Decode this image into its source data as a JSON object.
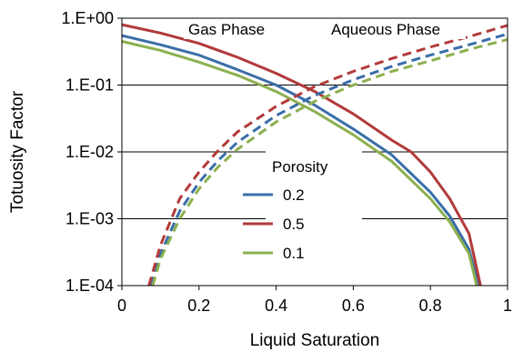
{
  "chart_data": {
    "type": "line",
    "xlabel": "Liquid Saturation",
    "ylabel": "Totuosity Factor",
    "x_scale": "linear",
    "y_scale": "log",
    "xlim": [
      0,
      1
    ],
    "ylim": [
      0.0001,
      1
    ],
    "x_ticks": [
      "0",
      "0.2",
      "0.4",
      "0.6",
      "0.8",
      "1"
    ],
    "y_ticks": [
      "1.E-04",
      "1.E-03",
      "1.E-02",
      "1.E-01",
      "1.E+00"
    ],
    "grid": "horizontal",
    "annotations": [
      "Gas Phase",
      "Aqueous Phase"
    ],
    "legend": {
      "title": "Porosity",
      "placement": "center-right",
      "entries": [
        "0.2",
        "0.5",
        "0.1"
      ]
    },
    "colors": {
      "0.2": "#3A6EA8",
      "0.5": "#B23A3A",
      "0.1": "#8CB050"
    },
    "line_styles": {
      "Gas Phase": "solid",
      "Aqueous Phase": "dashed"
    },
    "series": [
      {
        "name": "0.2",
        "phase": "Gas Phase",
        "x": [
          0.0,
          0.1,
          0.2,
          0.3,
          0.4,
          0.5,
          0.6,
          0.7,
          0.8,
          0.85,
          0.9,
          0.925
        ],
        "y": [
          0.55,
          0.4,
          0.28,
          0.17,
          0.1,
          0.05,
          0.022,
          0.009,
          0.0025,
          0.0011,
          0.00035,
          0.0001
        ]
      },
      {
        "name": "0.5",
        "phase": "Gas Phase",
        "x": [
          0.0,
          0.1,
          0.2,
          0.3,
          0.4,
          0.5,
          0.6,
          0.7,
          0.75,
          0.8,
          0.85,
          0.9,
          0.93
        ],
        "y": [
          0.8,
          0.6,
          0.42,
          0.26,
          0.15,
          0.08,
          0.037,
          0.015,
          0.01,
          0.005,
          0.002,
          0.0006,
          0.0001
        ]
      },
      {
        "name": "0.1",
        "phase": "Gas Phase",
        "x": [
          0.0,
          0.1,
          0.2,
          0.3,
          0.4,
          0.5,
          0.6,
          0.7,
          0.8,
          0.85,
          0.9,
          0.92
        ],
        "y": [
          0.45,
          0.33,
          0.22,
          0.14,
          0.08,
          0.04,
          0.018,
          0.0072,
          0.002,
          0.0009,
          0.0003,
          0.0001
        ]
      },
      {
        "name": "0.2",
        "phase": "Aqueous Phase",
        "x": [
          0.075,
          0.1,
          0.15,
          0.2,
          0.25,
          0.3,
          0.4,
          0.5,
          0.6,
          0.7,
          0.8,
          0.9,
          1.0
        ],
        "y": [
          0.0001,
          0.0003,
          0.0013,
          0.0035,
          0.0075,
          0.014,
          0.035,
          0.07,
          0.12,
          0.19,
          0.28,
          0.4,
          0.58
        ]
      },
      {
        "name": "0.5",
        "phase": "Aqueous Phase",
        "x": [
          0.07,
          0.1,
          0.15,
          0.2,
          0.25,
          0.3,
          0.4,
          0.5,
          0.6,
          0.7,
          0.8,
          0.9,
          1.0
        ],
        "y": [
          0.0001,
          0.0004,
          0.002,
          0.005,
          0.0105,
          0.02,
          0.048,
          0.095,
          0.16,
          0.25,
          0.37,
          0.53,
          0.78
        ]
      },
      {
        "name": "0.1",
        "phase": "Aqueous Phase",
        "x": [
          0.08,
          0.1,
          0.15,
          0.2,
          0.25,
          0.3,
          0.4,
          0.5,
          0.6,
          0.7,
          0.8,
          0.9,
          1.0
        ],
        "y": [
          0.0001,
          0.00025,
          0.001,
          0.0028,
          0.006,
          0.011,
          0.028,
          0.057,
          0.1,
          0.16,
          0.23,
          0.34,
          0.48
        ]
      }
    ]
  }
}
